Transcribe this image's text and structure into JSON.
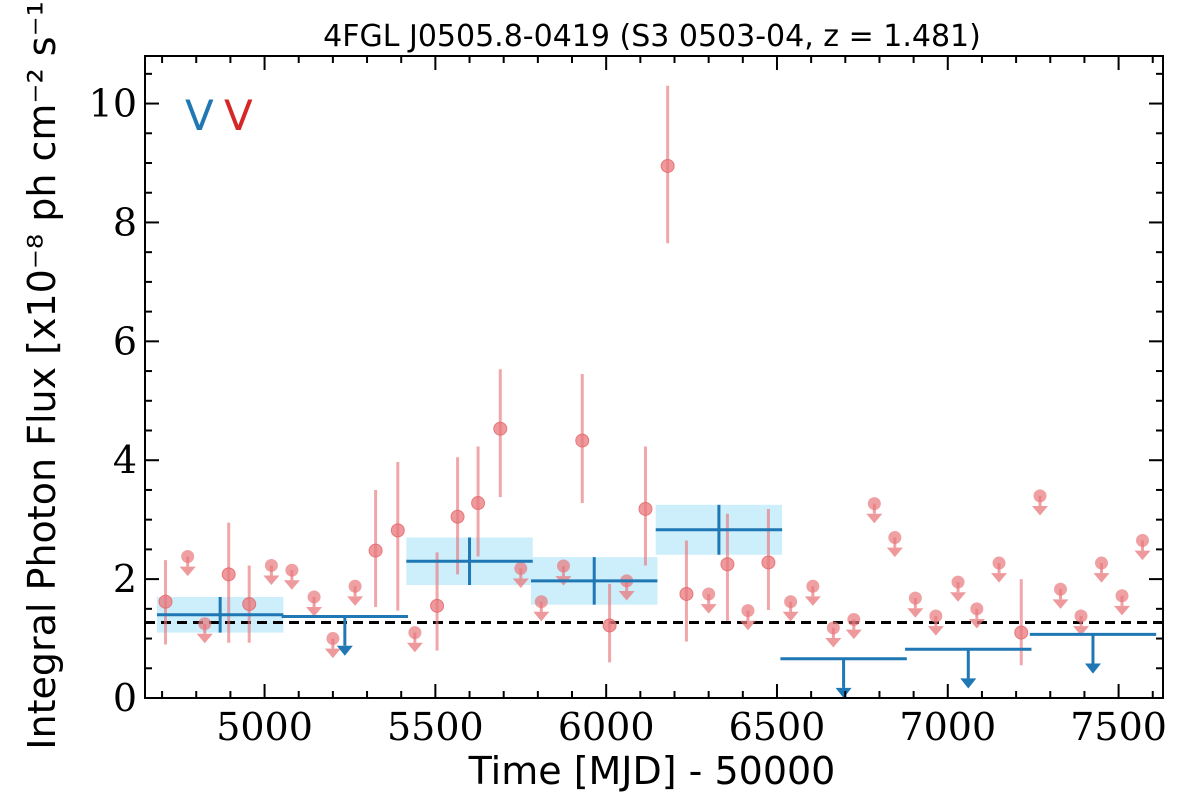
{
  "chart_data": {
    "type": "scatter",
    "title": "4FGL J0505.8-0419 (S3 0503-04, z = 1.481)",
    "xlabel": "Time [MJD] - 50000",
    "ylabel": "Integral Photon Flux [x10⁻⁸ ph cm⁻² s⁻¹]",
    "xlim": [
      4650,
      7630
    ],
    "ylim": [
      0,
      10.8
    ],
    "xticks": [
      5000,
      5500,
      6000,
      6500,
      7000,
      7500
    ],
    "yticks": [
      0,
      2,
      4,
      6,
      8,
      10
    ],
    "flags": [
      {
        "text": "V",
        "color": "#1f77b4"
      },
      {
        "text": "V",
        "color": "#d62728"
      }
    ],
    "baseline_flux": 1.27,
    "colors": {
      "short_bins": "#e8787c",
      "long_bins": "#1f77b4",
      "long_bins_band": "#cdeefb",
      "baseline": "#000000"
    },
    "series": [
      {
        "kind": "short_bin_detections",
        "points": [
          {
            "x": 4710,
            "y": 1.62,
            "yerr_low": 0.72,
            "yerr_high": 0.7
          },
          {
            "x": 4895,
            "y": 2.08,
            "yerr_low": 1.15,
            "yerr_high": 0.87
          },
          {
            "x": 4955,
            "y": 1.58,
            "yerr_low": 0.65,
            "yerr_high": 0.65
          },
          {
            "x": 5325,
            "y": 2.48,
            "yerr_low": 0.95,
            "yerr_high": 1.02
          },
          {
            "x": 5390,
            "y": 2.82,
            "yerr_low": 1.35,
            "yerr_high": 1.15
          },
          {
            "x": 5505,
            "y": 1.55,
            "yerr_low": 0.75,
            "yerr_high": 0.9
          },
          {
            "x": 5565,
            "y": 3.05,
            "yerr_low": 0.97,
            "yerr_high": 1.0
          },
          {
            "x": 5625,
            "y": 3.28,
            "yerr_low": 0.9,
            "yerr_high": 0.95
          },
          {
            "x": 5690,
            "y": 4.53,
            "yerr_low": 1.15,
            "yerr_high": 1.0
          },
          {
            "x": 5930,
            "y": 4.33,
            "yerr_low": 1.05,
            "yerr_high": 1.12
          },
          {
            "x": 6010,
            "y": 1.22,
            "yerr_low": 0.62,
            "yerr_high": 0.7
          },
          {
            "x": 6115,
            "y": 3.18,
            "yerr_low": 0.95,
            "yerr_high": 1.05
          },
          {
            "x": 6180,
            "y": 8.95,
            "yerr_low": 1.3,
            "yerr_high": 1.35
          },
          {
            "x": 6235,
            "y": 1.75,
            "yerr_low": 0.8,
            "yerr_high": 0.9
          },
          {
            "x": 6355,
            "y": 2.25,
            "yerr_low": 0.95,
            "yerr_high": 0.85
          },
          {
            "x": 6475,
            "y": 2.28,
            "yerr_low": 0.8,
            "yerr_high": 0.9
          },
          {
            "x": 7215,
            "y": 1.1,
            "yerr_low": 0.55,
            "yerr_high": 0.9
          }
        ]
      },
      {
        "kind": "short_bin_upper_limits",
        "points": [
          {
            "x": 4775,
            "y": 2.38
          },
          {
            "x": 4825,
            "y": 1.25
          },
          {
            "x": 5020,
            "y": 2.23
          },
          {
            "x": 5080,
            "y": 2.15
          },
          {
            "x": 5145,
            "y": 1.7
          },
          {
            "x": 5200,
            "y": 1.0
          },
          {
            "x": 5265,
            "y": 1.88
          },
          {
            "x": 5440,
            "y": 1.1
          },
          {
            "x": 5750,
            "y": 2.18
          },
          {
            "x": 5810,
            "y": 1.62
          },
          {
            "x": 5875,
            "y": 2.22
          },
          {
            "x": 6060,
            "y": 1.97
          },
          {
            "x": 6300,
            "y": 1.75
          },
          {
            "x": 6415,
            "y": 1.47
          },
          {
            "x": 6540,
            "y": 1.62
          },
          {
            "x": 6605,
            "y": 1.88
          },
          {
            "x": 6665,
            "y": 1.18
          },
          {
            "x": 6725,
            "y": 1.32
          },
          {
            "x": 6785,
            "y": 3.27
          },
          {
            "x": 6845,
            "y": 2.7
          },
          {
            "x": 6905,
            "y": 1.68
          },
          {
            "x": 6965,
            "y": 1.38
          },
          {
            "x": 7030,
            "y": 1.95
          },
          {
            "x": 7085,
            "y": 1.5
          },
          {
            "x": 7150,
            "y": 2.27
          },
          {
            "x": 7270,
            "y": 3.4
          },
          {
            "x": 7330,
            "y": 1.83
          },
          {
            "x": 7390,
            "y": 1.38
          },
          {
            "x": 7450,
            "y": 2.27
          },
          {
            "x": 7510,
            "y": 1.72
          },
          {
            "x": 7570,
            "y": 2.65
          }
        ]
      },
      {
        "kind": "long_bin_detections",
        "points": [
          {
            "x": 4870,
            "xerr": 185,
            "y": 1.4,
            "yerr": 0.3
          },
          {
            "x": 5600,
            "xerr": 185,
            "y": 2.3,
            "yerr": 0.4
          },
          {
            "x": 5965,
            "xerr": 185,
            "y": 1.97,
            "yerr": 0.4
          },
          {
            "x": 6330,
            "xerr": 185,
            "y": 2.83,
            "yerr": 0.42
          }
        ]
      },
      {
        "kind": "long_bin_upper_limits",
        "points": [
          {
            "x": 5235,
            "xerr": 185,
            "y": 1.37
          },
          {
            "x": 6695,
            "xerr": 185,
            "y": 0.66
          },
          {
            "x": 7060,
            "xerr": 185,
            "y": 0.82
          },
          {
            "x": 7425,
            "xerr": 185,
            "y": 1.07
          }
        ]
      }
    ]
  }
}
